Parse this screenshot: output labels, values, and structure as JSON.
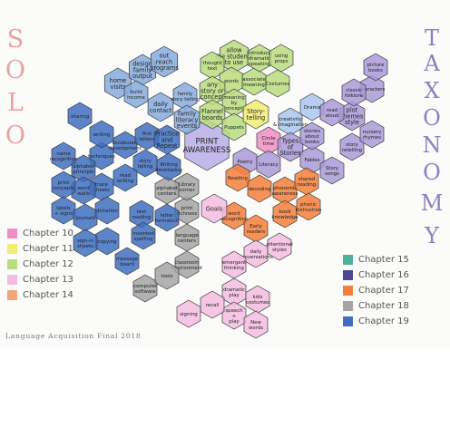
{
  "side_title_left": [
    "S",
    "O",
    "L",
    "O"
  ],
  "side_title_right": [
    "T",
    "A",
    "X",
    "O",
    "N",
    "O",
    "M",
    "Y"
  ],
  "footer_title": "Language Acquisition Final 2018",
  "legend_left": [
    {
      "label": "Chapter 10",
      "color": "#ef8fc2"
    },
    {
      "label": "Chapter 11",
      "color": "#f3ec72"
    },
    {
      "label": "Chapter 12",
      "color": "#b7dd7f"
    },
    {
      "label": "Chapter 13",
      "color": "#f4bde0"
    },
    {
      "label": "Chapter 14",
      "color": "#f5a677"
    }
  ],
  "legend_right": [
    {
      "label": "Chapter 15",
      "color": "#4bb39b"
    },
    {
      "label": "Chapter 16",
      "color": "#4e4795"
    },
    {
      "label": "Chapter 17",
      "color": "#f47f3b"
    },
    {
      "label": "Chapter 18",
      "color": "#a4a4a4"
    },
    {
      "label": "Chapter 19",
      "color": "#3f6fc0"
    }
  ],
  "hexes": [
    {
      "id": "h1",
      "label": [
        "PRINT",
        "AWARENESS"
      ],
      "color": "#b9aee8",
      "size": "big"
    },
    {
      "id": "h2",
      "label": [
        "home",
        "visits"
      ],
      "color": "#87abdc"
    },
    {
      "id": "h3",
      "label": [
        "design",
        "family",
        "output"
      ],
      "color": "#87abdc"
    },
    {
      "id": "h4",
      "label": [
        "out",
        "reach",
        "programs"
      ],
      "color": "#87abdc"
    },
    {
      "id": "h5",
      "label": [
        "build",
        "income"
      ],
      "color": "#87abdc"
    },
    {
      "id": "h6",
      "label": [
        "daily",
        "contact"
      ],
      "color": "#87abdc"
    },
    {
      "id": "h7",
      "label": [
        "family",
        "story telling"
      ],
      "color": "#87abdc"
    },
    {
      "id": "h8",
      "label": [
        "family",
        "literacy",
        "events"
      ],
      "color": "#87abdc"
    },
    {
      "id": "h9",
      "label": [
        "allow",
        "the students",
        "to use"
      ],
      "color": "#b7dd7f"
    },
    {
      "id": "h10",
      "label": [
        "thought",
        "text"
      ],
      "color": "#b7dd7f"
    },
    {
      "id": "h11",
      "label": [
        "words"
      ],
      "color": "#b7dd7f"
    },
    {
      "id": "h12",
      "label": [
        "associate",
        "meaning"
      ],
      "color": "#b7dd7f"
    },
    {
      "id": "h13",
      "label": [
        "any",
        "story or",
        "concept"
      ],
      "color": "#b7dd7f"
    },
    {
      "id": "h14",
      "label": [
        "meaning",
        "by",
        "concepts"
      ],
      "color": "#b7dd7f"
    },
    {
      "id": "h15",
      "label": [
        "Flannel",
        "boards"
      ],
      "color": "#b7dd7f"
    },
    {
      "id": "h16",
      "label": [
        "Puppets"
      ],
      "color": "#b7dd7f"
    },
    {
      "id": "h17",
      "label": [
        "introduce",
        "dramatic",
        "speaking"
      ],
      "color": "#b7dd7f"
    },
    {
      "id": "h18",
      "label": [
        "using",
        "props"
      ],
      "color": "#b7dd7f"
    },
    {
      "id": "h19",
      "label": [
        "Costumes"
      ],
      "color": "#b7dd7f"
    },
    {
      "id": "h20",
      "label": [
        "Story-",
        "telling"
      ],
      "color": "#f3ec72"
    },
    {
      "id": "h21",
      "label": [
        "Circle",
        "time"
      ],
      "color": "#ef8fc2"
    },
    {
      "id": "h22",
      "label": [
        "creativity",
        "& imagination"
      ],
      "color": "#a8c5ef"
    },
    {
      "id": "h23",
      "label": [
        "Drama"
      ],
      "color": "#a8c5ef"
    },
    {
      "id": "h24",
      "label": [
        "Types",
        "of",
        "Stories"
      ],
      "color": "#a89ad8"
    },
    {
      "id": "h25",
      "label": [
        "Fables"
      ],
      "color": "#a89ad8"
    },
    {
      "id": "h26",
      "label": [
        "Poetry"
      ],
      "color": "#a89ad8"
    },
    {
      "id": "h27",
      "label": [
        "Literacy"
      ],
      "color": "#a89ad8"
    },
    {
      "id": "h28",
      "label": [
        "Story",
        "songs"
      ],
      "color": "#a89ad8"
    },
    {
      "id": "h29",
      "label": [
        "stories",
        "about",
        "books"
      ],
      "color": "#a89ad8"
    },
    {
      "id": "h30",
      "label": [
        "plot",
        "themes",
        "style"
      ],
      "color": "#a89ad8"
    },
    {
      "id": "h31",
      "label": [
        "story",
        "retelling"
      ],
      "color": "#a89ad8"
    },
    {
      "id": "h32",
      "label": [
        "read",
        "aloud"
      ],
      "color": "#a89ad8"
    },
    {
      "id": "h33",
      "label": [
        "characters"
      ],
      "color": "#a89ad8"
    },
    {
      "id": "h34",
      "label": [
        "picture",
        "books"
      ],
      "color": "#a89ad8"
    },
    {
      "id": "h35",
      "label": [
        "classic",
        "folklore"
      ],
      "color": "#a89ad8"
    },
    {
      "id": "h36",
      "label": [
        "nursery",
        "rhymes"
      ],
      "color": "#a89ad8"
    },
    {
      "id": "h37",
      "label": [
        "Reading"
      ],
      "color": "#f47f3b"
    },
    {
      "id": "h38",
      "label": [
        "decoding"
      ],
      "color": "#f47f3b"
    },
    {
      "id": "h39",
      "label": [
        "word",
        "recognition"
      ],
      "color": "#f47f3b"
    },
    {
      "id": "h40",
      "label": [
        "Early",
        "readers"
      ],
      "color": "#f47f3b"
    },
    {
      "id": "h41",
      "label": [
        "phonemic",
        "awareness"
      ],
      "color": "#f47f3b"
    },
    {
      "id": "h42",
      "label": [
        "shared",
        "reading"
      ],
      "color": "#f47f3b"
    },
    {
      "id": "h43",
      "label": [
        "book",
        "knowledge"
      ],
      "color": "#f47f3b"
    },
    {
      "id": "h44",
      "label": [
        "phonic",
        "instruction"
      ],
      "color": "#f47f3b"
    },
    {
      "id": "h45",
      "label": [
        "daily",
        "conversations"
      ],
      "color": "#f4bde0"
    },
    {
      "id": "h46",
      "label": [
        "attentional",
        "styles"
      ],
      "color": "#f4bde0"
    },
    {
      "id": "h47",
      "label": [
        "emergent",
        "thinking"
      ],
      "color": "#f4bde0"
    },
    {
      "id": "h48",
      "label": [
        "dramatic",
        "play"
      ],
      "color": "#f4bde0"
    },
    {
      "id": "h49",
      "label": [
        "kids",
        "costumes"
      ],
      "color": "#f4bde0"
    },
    {
      "id": "h50",
      "label": [
        "speech",
        "+",
        "play"
      ],
      "color": "#f4bde0"
    },
    {
      "id": "h51",
      "label": [
        "New",
        "words"
      ],
      "color": "#f4bde0"
    },
    {
      "id": "h52",
      "label": [
        "recall"
      ],
      "color": "#f4bde0"
    },
    {
      "id": "h53",
      "label": [
        "signing"
      ],
      "color": "#f4bde0"
    },
    {
      "id": "h54",
      "label": [
        "Goals"
      ],
      "color": "#f4bde0"
    },
    {
      "id": "h55",
      "label": [
        "print",
        "richness"
      ],
      "color": "#a4a4a4"
    },
    {
      "id": "h56",
      "label": [
        "Library",
        "corner"
      ],
      "color": "#a4a4a4"
    },
    {
      "id": "h57",
      "label": [
        "alphabet",
        "centers"
      ],
      "color": "#a4a4a4"
    },
    {
      "id": "h58",
      "label": [
        "language",
        "centers"
      ],
      "color": "#a4a4a4"
    },
    {
      "id": "h59",
      "label": [
        "classroom",
        "environment"
      ],
      "color": "#a4a4a4"
    },
    {
      "id": "h60",
      "label": [
        "computer",
        "software"
      ],
      "color": "#a4a4a4"
    },
    {
      "id": "h61",
      "label": [
        "tools"
      ],
      "color": "#a4a4a4"
    },
    {
      "id": "h62",
      "label": [
        "text",
        "reading"
      ],
      "color": "#3f6fc0"
    },
    {
      "id": "h63",
      "label": [
        "story",
        "telling"
      ],
      "color": "#3f6fc0"
    },
    {
      "id": "h64",
      "label": [
        "Writing",
        "developing"
      ],
      "color": "#3f6fc0"
    },
    {
      "id": "h65",
      "label": [
        "invented",
        "spelling"
      ],
      "color": "#3f6fc0"
    },
    {
      "id": "h66",
      "label": [
        "letter",
        "formation"
      ],
      "color": "#3f6fc0"
    },
    {
      "id": "h67",
      "label": [
        "techniques"
      ],
      "color": "#3f6fc0"
    },
    {
      "id": "h68",
      "label": [
        "vocabulary",
        "development"
      ],
      "color": "#3f6fc0"
    },
    {
      "id": "h69",
      "label": [
        "first",
        "letters"
      ],
      "color": "#3f6fc0"
    },
    {
      "id": "h70",
      "label": [
        "read",
        "writing"
      ],
      "color": "#3f6fc0"
    },
    {
      "id": "h71",
      "label": [
        "trace",
        "sheets"
      ],
      "color": "#3f6fc0"
    },
    {
      "id": "h72",
      "label": [
        "alphabet",
        "principle"
      ],
      "color": "#3f6fc0"
    },
    {
      "id": "h73",
      "label": [
        "name",
        "recognition"
      ],
      "color": "#3f6fc0"
    },
    {
      "id": "h74",
      "label": [
        "Practice",
        "and",
        "Repeat"
      ],
      "color": "#3f6fc0"
    },
    {
      "id": "h75",
      "label": [
        "sharing",
        ""
      ],
      "color": "#3f6fc0"
    },
    {
      "id": "h76",
      "label": [
        "writing"
      ],
      "color": "#3f6fc0"
    },
    {
      "id": "h77",
      "label": [
        "word",
        "walls"
      ],
      "color": "#3f6fc0"
    },
    {
      "id": "h78",
      "label": [
        "print",
        "concepts"
      ],
      "color": "#3f6fc0"
    },
    {
      "id": "h79",
      "label": [
        "labels",
        "+ signs"
      ],
      "color": "#3f6fc0"
    },
    {
      "id": "h80",
      "label": [
        "journals"
      ],
      "color": "#3f6fc0"
    },
    {
      "id": "h81",
      "label": [
        "dictation"
      ],
      "color": "#3f6fc0"
    },
    {
      "id": "h82",
      "label": [
        "copying"
      ],
      "color": "#3f6fc0"
    },
    {
      "id": "h83",
      "label": [
        "sign-in",
        "sheets"
      ],
      "color": "#3f6fc0"
    },
    {
      "id": "h84",
      "label": [
        "message",
        "board"
      ],
      "color": "#3f6fc0"
    }
  ]
}
